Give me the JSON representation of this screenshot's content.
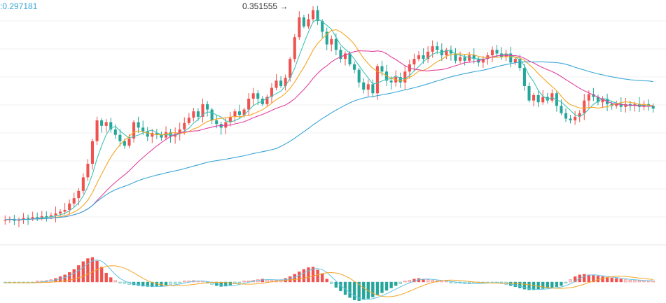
{
  "header": {
    "ma_readout": ":0.297181",
    "high_marker": "0.351555 →"
  },
  "colors": {
    "up": "#ef5350",
    "down": "#26a69a",
    "ma_fast": "#3ec4b4",
    "ma_mid": "#f5a623",
    "ma_slow": "#e040a0",
    "ma_long": "#3aa6d6",
    "macd_line": "#63c2e8",
    "signal_line": "#f5a623",
    "grid": "#f0f0f0",
    "divider": "#e6e6e6"
  },
  "chart_data": {
    "type": "candlestick",
    "price_range": [
      0.115,
      0.355
    ],
    "high_marker_value": 0.351555,
    "candles_close_path": [
      [
        0.118,
        0.118
      ],
      [
        0.118,
        0.119
      ],
      [
        0.119,
        0.117
      ],
      [
        0.117,
        0.118
      ],
      [
        0.118,
        0.12
      ],
      [
        0.12,
        0.119
      ],
      [
        0.119,
        0.121
      ],
      [
        0.121,
        0.12
      ],
      [
        0.12,
        0.122
      ],
      [
        0.122,
        0.121
      ],
      [
        0.121,
        0.123
      ],
      [
        0.123,
        0.125
      ],
      [
        0.125,
        0.127
      ],
      [
        0.127,
        0.129
      ],
      [
        0.129,
        0.136
      ],
      [
        0.136,
        0.142
      ],
      [
        0.142,
        0.15
      ],
      [
        0.15,
        0.165
      ],
      [
        0.165,
        0.18
      ],
      [
        0.18,
        0.205
      ],
      [
        0.205,
        0.228
      ],
      [
        0.228,
        0.222
      ],
      [
        0.222,
        0.226
      ],
      [
        0.226,
        0.218
      ],
      [
        0.218,
        0.212
      ],
      [
        0.212,
        0.205
      ],
      [
        0.205,
        0.2
      ],
      [
        0.2,
        0.208
      ],
      [
        0.208,
        0.226
      ],
      [
        0.226,
        0.22
      ],
      [
        0.22,
        0.216
      ],
      [
        0.216,
        0.21
      ],
      [
        0.21,
        0.214
      ],
      [
        0.214,
        0.212
      ],
      [
        0.212,
        0.209
      ],
      [
        0.209,
        0.215
      ],
      [
        0.215,
        0.21
      ],
      [
        0.21,
        0.213
      ],
      [
        0.213,
        0.218
      ],
      [
        0.218,
        0.225
      ],
      [
        0.225,
        0.231
      ],
      [
        0.231,
        0.238
      ],
      [
        0.238,
        0.232
      ],
      [
        0.232,
        0.246
      ],
      [
        0.246,
        0.24
      ],
      [
        0.24,
        0.228
      ],
      [
        0.228,
        0.224
      ],
      [
        0.224,
        0.22
      ],
      [
        0.22,
        0.226
      ],
      [
        0.226,
        0.232
      ],
      [
        0.232,
        0.238
      ],
      [
        0.238,
        0.234
      ],
      [
        0.234,
        0.24
      ],
      [
        0.24,
        0.252
      ],
      [
        0.252,
        0.258
      ],
      [
        0.258,
        0.252
      ],
      [
        0.252,
        0.246
      ],
      [
        0.246,
        0.254
      ],
      [
        0.254,
        0.264
      ],
      [
        0.264,
        0.272
      ],
      [
        0.272,
        0.266
      ],
      [
        0.266,
        0.275
      ],
      [
        0.275,
        0.296
      ],
      [
        0.296,
        0.32
      ],
      [
        0.32,
        0.342
      ],
      [
        0.342,
        0.332
      ],
      [
        0.332,
        0.34
      ],
      [
        0.34,
        0.35
      ],
      [
        0.35,
        0.338
      ],
      [
        0.338,
        0.326
      ],
      [
        0.326,
        0.312
      ],
      [
        0.312,
        0.318
      ],
      [
        0.318,
        0.306
      ],
      [
        0.306,
        0.296
      ],
      [
        0.296,
        0.302
      ],
      [
        0.302,
        0.29
      ],
      [
        0.29,
        0.284
      ],
      [
        0.284,
        0.27
      ],
      [
        0.27,
        0.262
      ],
      [
        0.262,
        0.268
      ],
      [
        0.268,
        0.258
      ],
      [
        0.258,
        0.288
      ],
      [
        0.288,
        0.282
      ],
      [
        0.282,
        0.272
      ],
      [
        0.272,
        0.27
      ],
      [
        0.27,
        0.276
      ],
      [
        0.276,
        0.27
      ],
      [
        0.27,
        0.282
      ],
      [
        0.282,
        0.29
      ],
      [
        0.29,
        0.296
      ],
      [
        0.296,
        0.3
      ],
      [
        0.3,
        0.296
      ],
      [
        0.296,
        0.304
      ],
      [
        0.304,
        0.31
      ],
      [
        0.31,
        0.306
      ],
      [
        0.306,
        0.3
      ],
      [
        0.3,
        0.306
      ],
      [
        0.306,
        0.302
      ],
      [
        0.302,
        0.294
      ],
      [
        0.294,
        0.298
      ],
      [
        0.298,
        0.294
      ],
      [
        0.294,
        0.3
      ],
      [
        0.3,
        0.296
      ],
      [
        0.296,
        0.292
      ],
      [
        0.292,
        0.296
      ],
      [
        0.296,
        0.3
      ],
      [
        0.3,
        0.306
      ],
      [
        0.306,
        0.302
      ],
      [
        0.302,
        0.298
      ],
      [
        0.298,
        0.302
      ],
      [
        0.302,
        0.292
      ],
      [
        0.292,
        0.296
      ],
      [
        0.296,
        0.286
      ],
      [
        0.286,
        0.266
      ],
      [
        0.266,
        0.25
      ],
      [
        0.25,
        0.256
      ],
      [
        0.256,
        0.248
      ],
      [
        0.248,
        0.254
      ],
      [
        0.254,
        0.25
      ],
      [
        0.25,
        0.258
      ],
      [
        0.258,
        0.244
      ],
      [
        0.244,
        0.236
      ],
      [
        0.236,
        0.23
      ],
      [
        0.23,
        0.228
      ],
      [
        0.228,
        0.232
      ],
      [
        0.232,
        0.236
      ],
      [
        0.236,
        0.25
      ],
      [
        0.25,
        0.257
      ],
      [
        0.257,
        0.254
      ],
      [
        0.254,
        0.248
      ],
      [
        0.248,
        0.252
      ],
      [
        0.252,
        0.246
      ],
      [
        0.246,
        0.244
      ],
      [
        0.244,
        0.246
      ],
      [
        0.246,
        0.243
      ],
      [
        0.243,
        0.246
      ],
      [
        0.246,
        0.244
      ],
      [
        0.244,
        0.246
      ],
      [
        0.246,
        0.243
      ],
      [
        0.243,
        0.246
      ],
      [
        0.246,
        0.244
      ],
      [
        0.244,
        0.241
      ]
    ],
    "macd": {
      "range": [
        -1.0,
        1.0
      ],
      "histogram": [
        -0.02,
        -0.03,
        -0.02,
        -0.02,
        -0.03,
        -0.02,
        -0.02,
        0.02,
        0.03,
        0.05,
        0.08,
        0.12,
        0.18,
        0.24,
        0.32,
        0.42,
        0.55,
        0.68,
        0.78,
        0.82,
        0.7,
        0.5,
        0.3,
        0.15,
        0.05,
        -0.02,
        -0.05,
        -0.08,
        -0.1,
        -0.12,
        -0.14,
        -0.15,
        -0.16,
        -0.15,
        -0.14,
        -0.1,
        -0.08,
        -0.06,
        -0.03,
        0.02,
        0.04,
        0.05,
        0.03,
        0.02,
        -0.04,
        -0.08,
        -0.12,
        -0.15,
        -0.14,
        -0.1,
        -0.06,
        -0.03,
        0.02,
        0.04,
        0.06,
        0.08,
        0.1,
        0.08,
        0.06,
        0.05,
        0.08,
        0.12,
        0.18,
        0.26,
        0.34,
        0.42,
        0.48,
        0.5,
        0.4,
        0.28,
        0.1,
        -0.06,
        -0.18,
        -0.3,
        -0.42,
        -0.52,
        -0.6,
        -0.62,
        -0.58,
        -0.55,
        -0.5,
        -0.44,
        -0.36,
        -0.28,
        -0.2,
        -0.12,
        -0.06,
        0.02,
        0.06,
        0.1,
        0.12,
        0.1,
        0.08,
        0.06,
        0.04,
        0.03,
        0.02,
        -0.02,
        -0.03,
        -0.04,
        -0.05,
        -0.06,
        -0.05,
        -0.04,
        -0.03,
        -0.02,
        -0.02,
        -0.03,
        -0.05,
        -0.08,
        -0.12,
        -0.16,
        -0.2,
        -0.24,
        -0.26,
        -0.26,
        -0.24,
        -0.22,
        -0.2,
        -0.18,
        -0.16,
        -0.12,
        -0.04,
        0.08,
        0.18,
        0.24,
        0.26,
        0.24,
        0.22,
        0.2,
        0.18,
        0.16,
        0.14,
        0.12,
        0.1,
        0.08,
        0.06,
        0.06,
        0.05,
        0.04,
        0.04,
        0.04
      ]
    }
  }
}
